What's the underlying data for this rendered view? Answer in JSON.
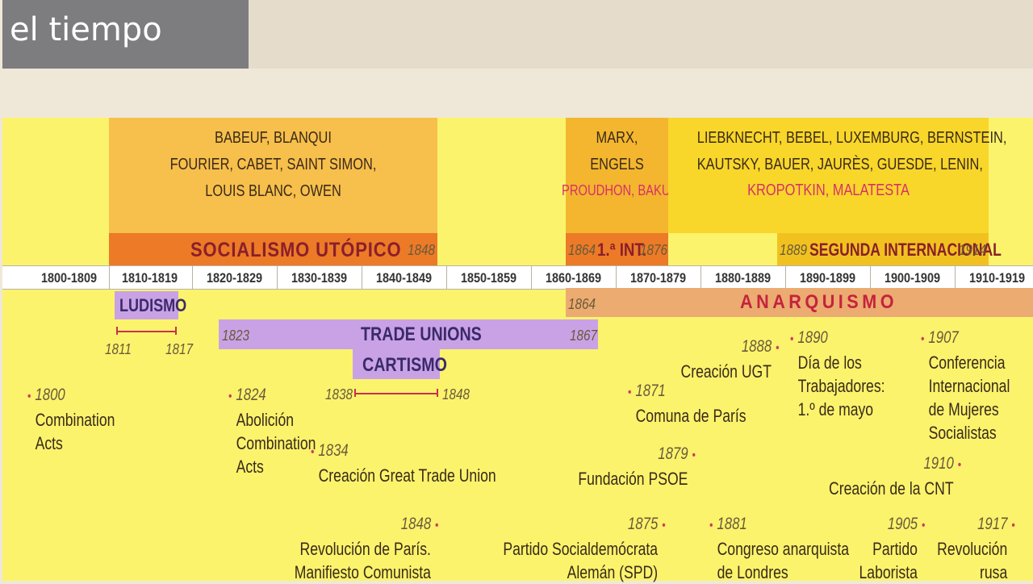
{
  "title": "el tiempo",
  "utopic": {
    "names": [
      "BABEUF, BLANQUI",
      "FOURIER, CABET, SAINT SIMON,",
      "LOUIS  BLANC, OWEN"
    ],
    "label": "SOCIALISMO UTÓPICO",
    "end_year": "1848"
  },
  "first_int": {
    "names": [
      "MARX,",
      "ENGELS"
    ],
    "names_red": "PROUDHON, BAKUNIN",
    "start_year": "1864",
    "label": "1.ª INT.",
    "end_year": "1876"
  },
  "second_int": {
    "names": [
      "LIEBKNECHT, BEBEL, LUXEMBURG, BERNSTEIN,",
      "KAUTSKY, BAUER, JAURÈS, GUESDE, LENIN,"
    ],
    "names_red": "KROPOTKIN, MALATESTA",
    "start_year": "1889",
    "label": "SEGUNDA INTERNACIONAL",
    "end_year": "1914"
  },
  "decades": [
    "1800-1809",
    "1810-1819",
    "1820-1829",
    "1830-1839",
    "1840-1849",
    "1850-1859",
    "1860-1869",
    "1870-1879",
    "1880-1889",
    "1890-1899",
    "1900-1909",
    "1910-1919"
  ],
  "ludismo": {
    "label": "LUDISMO",
    "start": "1811",
    "end": "1817"
  },
  "trade_unions": {
    "label": "TRADE UNIONS",
    "start": "1823",
    "end": "1867"
  },
  "cartismo": {
    "label": "CARTISMO",
    "start": "1838",
    "end": "1848"
  },
  "anarquismo": {
    "label": "ANARQUISMO",
    "start": "1864"
  },
  "events": {
    "e1800": {
      "year": "1800",
      "text": [
        "Combination",
        "Acts"
      ]
    },
    "e1824": {
      "year": "1824",
      "text": [
        "Abolición",
        "Combination",
        "Acts"
      ]
    },
    "e1834": {
      "year": "1834",
      "text": [
        "Creación Great Trade Union"
      ]
    },
    "e1848": {
      "year": "1848",
      "text": [
        "Revolución de París.",
        "Manifiesto Comunista"
      ]
    },
    "e1871": {
      "year": "1871",
      "text": [
        "Comuna de París"
      ]
    },
    "e1879": {
      "year": "1879",
      "text": [
        "Fundación PSOE"
      ]
    },
    "e1875": {
      "year": "1875",
      "text": [
        "Partido Socialdemócrata",
        "Alemán (SPD)"
      ]
    },
    "e1888": {
      "year": "1888",
      "text": [
        "Creación UGT"
      ]
    },
    "e1890": {
      "year": "1890",
      "text": [
        "Día de los",
        "Trabajadores:",
        "1.º de mayo"
      ]
    },
    "e1881": {
      "year": "1881",
      "text": [
        "Congreso anarquista",
        "de Londres"
      ]
    },
    "e1907": {
      "year": "1907",
      "text": [
        "Conferencia",
        "Internacional",
        "de Mujeres",
        "Socialistas"
      ]
    },
    "e1910": {
      "year": "1910",
      "text": [
        "Creación de la CNT"
      ]
    },
    "e1905": {
      "year": "1905",
      "text": [
        "Partido",
        "Laborista"
      ]
    },
    "e1917": {
      "year": "1917",
      "text": [
        "Revolución",
        "rusa"
      ]
    }
  },
  "colors": {
    "panel": "#fbf36c",
    "utopic_box": "#f7bf4b",
    "utopic_bar": "#ec7a27",
    "first_int_box": "#f3b62e",
    "second_int_box": "#f8d62a",
    "purple": "#c9a2e6",
    "anarquismo": "#ecab70",
    "red_text": "#d7306a",
    "title_bar": "#7d7d80"
  }
}
